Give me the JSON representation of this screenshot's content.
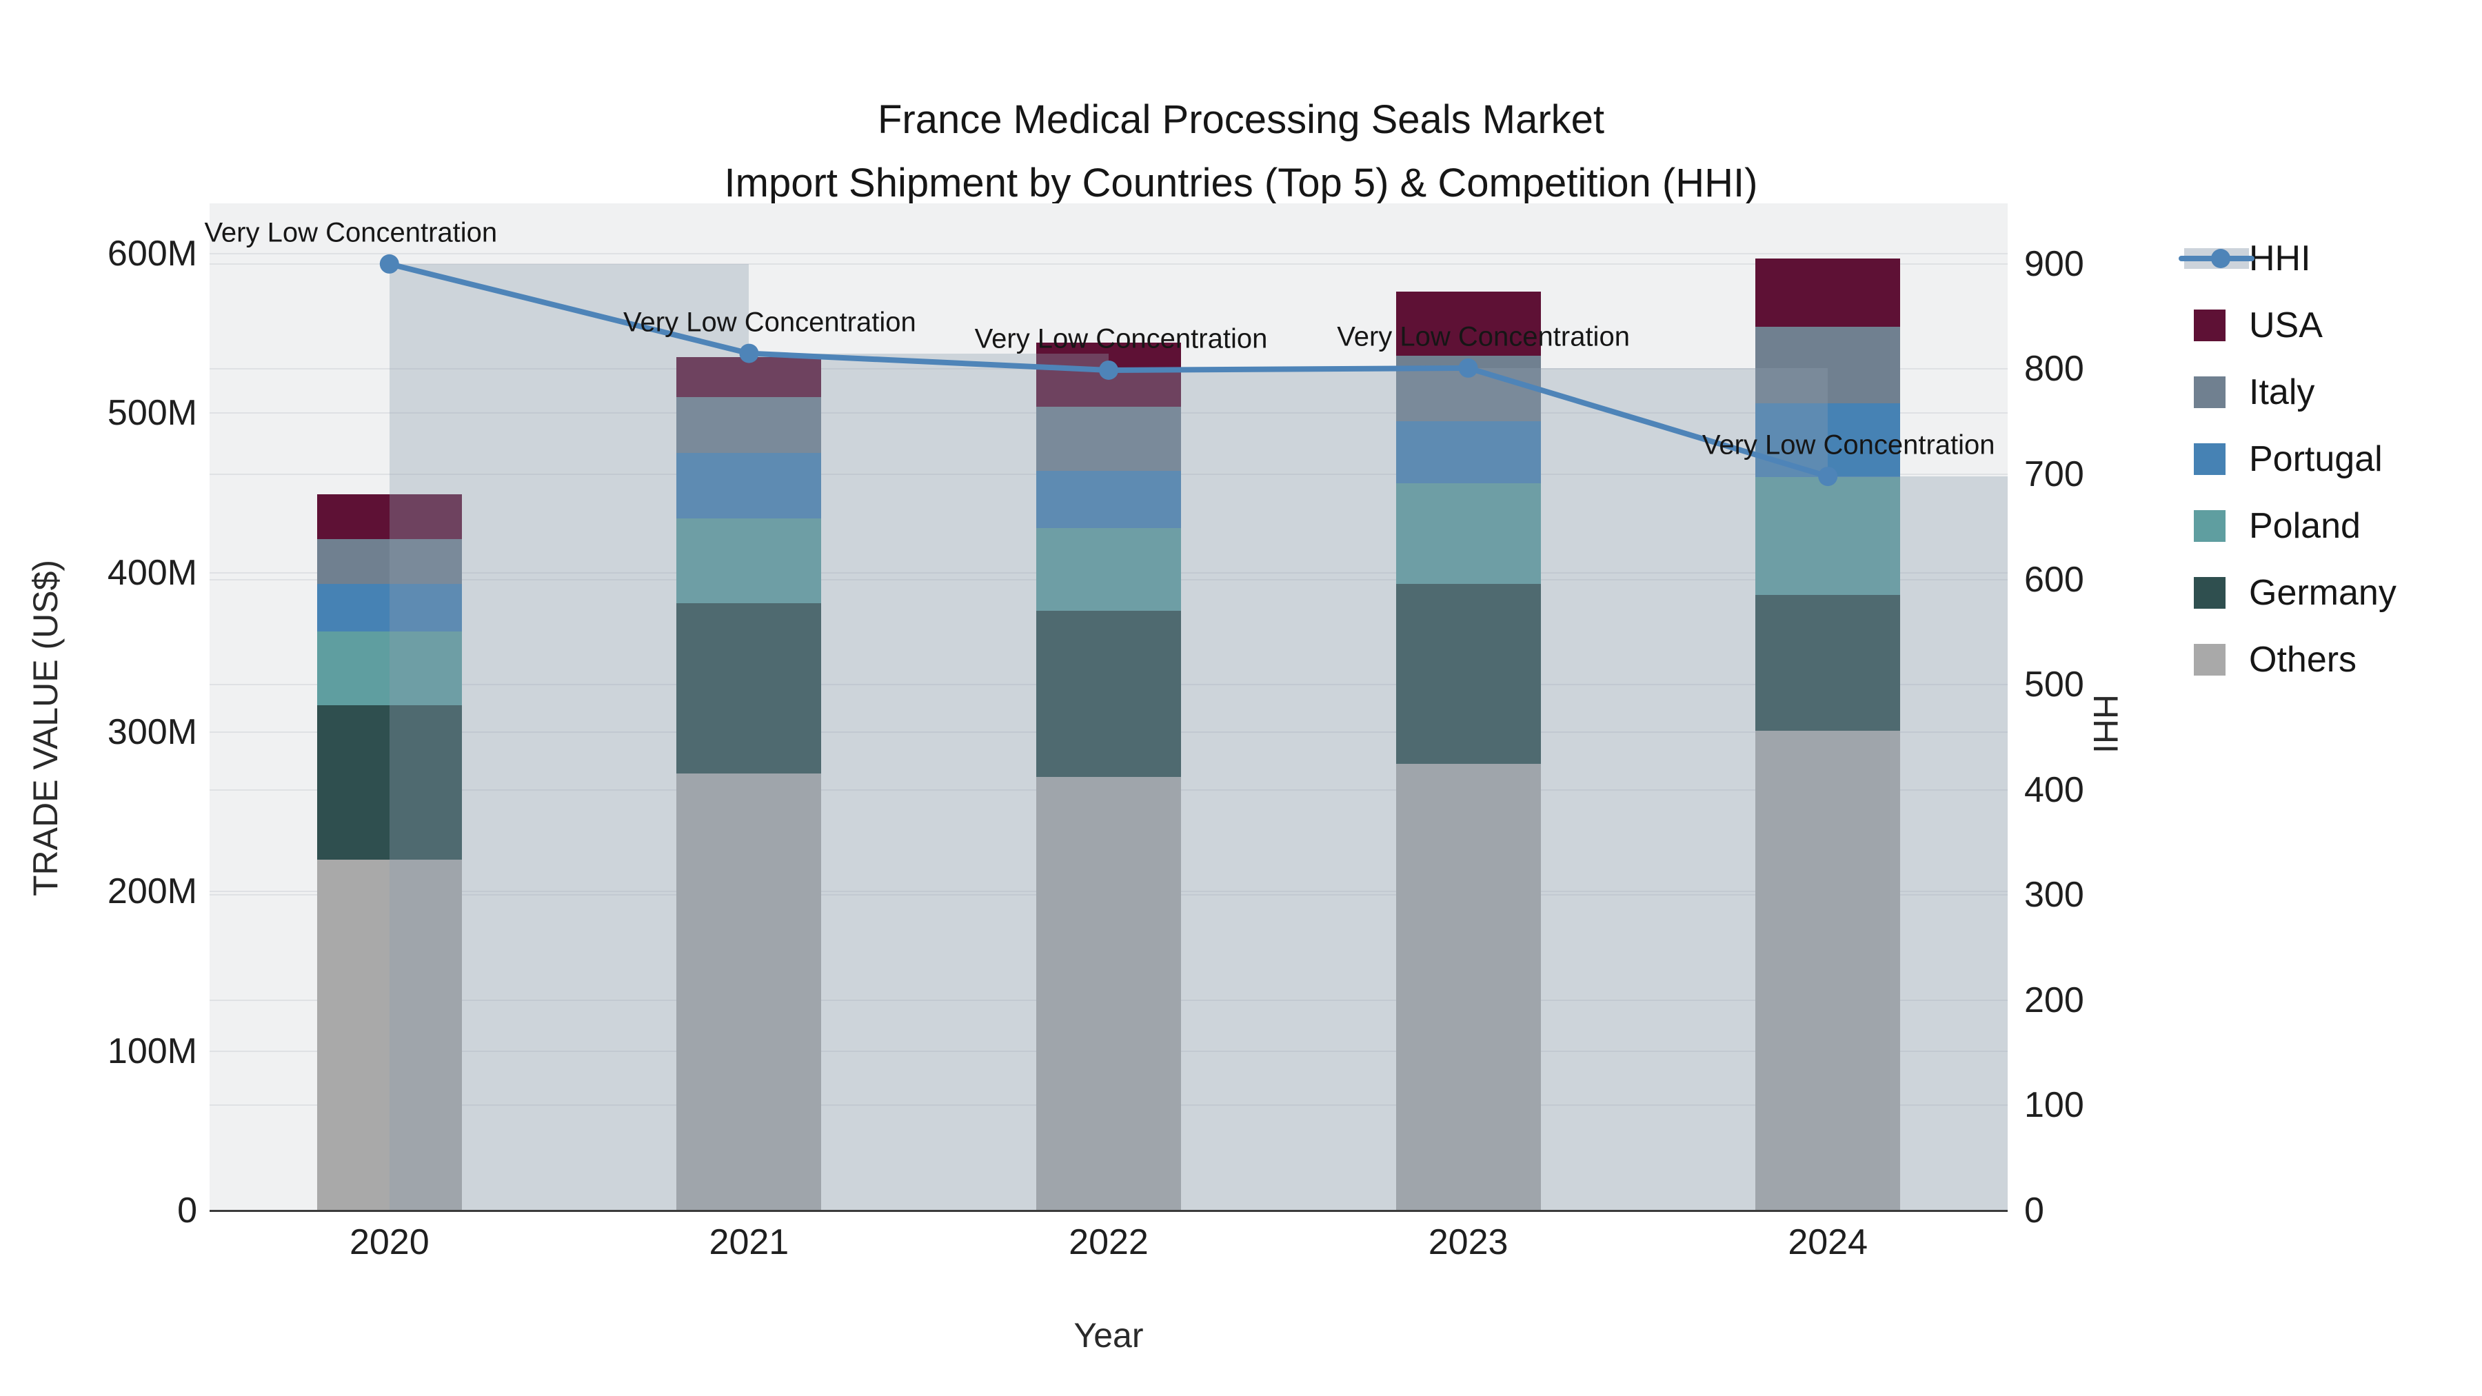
{
  "title": {
    "line1": "France Medical Processing Seals Market",
    "line2": "Import Shipment by Countries (Top 5) & Competition (HHI)"
  },
  "axes": {
    "x": {
      "title": "Year",
      "ticks": [
        "2020",
        "2021",
        "2022",
        "2023",
        "2024"
      ]
    },
    "left": {
      "title": "TRADE VALUE (US$)",
      "ticks": [
        "0",
        "100M",
        "200M",
        "300M",
        "400M",
        "500M",
        "600M"
      ],
      "tick_values": [
        0,
        100,
        200,
        300,
        400,
        500,
        600
      ]
    },
    "right": {
      "title": "HHI",
      "ticks": [
        "0",
        "100",
        "200",
        "300",
        "400",
        "500",
        "600",
        "700",
        "800",
        "900"
      ],
      "tick_values": [
        0,
        100,
        200,
        300,
        400,
        500,
        600,
        700,
        800,
        900
      ]
    }
  },
  "legend": {
    "hhi_label": "HHI",
    "entries": [
      "HHI",
      "USA",
      "Italy",
      "Portugal",
      "Poland",
      "Germany",
      "Others"
    ]
  },
  "colors": {
    "hhi_line": "#4e84b8",
    "hhi_bar_fill": "rgba(140,158,175,0.35)",
    "plot_background": "#f0f1f2",
    "gridline": "#dfe1e4",
    "axis_line": "#3b3b3b"
  },
  "chart_data": {
    "type": "bar",
    "subtype": "stacked-bars-with-line-overlay",
    "categories": [
      "2020",
      "2021",
      "2022",
      "2023",
      "2024"
    ],
    "series": [
      {
        "name": "USA",
        "axis": "left",
        "color": "#5e1135",
        "values": [
          28,
          25,
          40,
          40,
          43
        ]
      },
      {
        "name": "Italy",
        "axis": "left",
        "color": "#708090",
        "values": [
          28,
          35,
          40,
          41,
          48
        ]
      },
      {
        "name": "Portugal",
        "axis": "left",
        "color": "#4682b4",
        "values": [
          30,
          41,
          36,
          39,
          46
        ]
      },
      {
        "name": "Poland",
        "axis": "left",
        "color": "#5f9ea0",
        "values": [
          46,
          53,
          52,
          63,
          74
        ]
      },
      {
        "name": "Germany",
        "axis": "left",
        "color": "#2f4f4f",
        "values": [
          97,
          107,
          104,
          113,
          85
        ]
      },
      {
        "name": "Others",
        "axis": "left",
        "color": "#a9a9a9",
        "values": [
          220,
          274,
          272,
          280,
          301
        ]
      }
    ],
    "stack_totals": [
      449,
      535,
      544,
      576,
      597
    ],
    "hhi_series": {
      "name": "HHI",
      "axis": "right",
      "type": "line+area-bars",
      "values": [
        900,
        815,
        799,
        801,
        698
      ],
      "annotations": [
        "Very Low Concentration",
        "Very Low Concentration",
        "Very Low Concentration",
        "Very Low Concentration",
        "Very Low Concentration"
      ]
    },
    "title": "France Medical Processing Seals Market — Import Shipment by Countries (Top 5) & Competition (HHI)",
    "xlabel": "Year",
    "ylabel_left": "TRADE VALUE (US$)",
    "ylabel_right": "HHI",
    "ylim_left": [
      0,
      631.5
    ],
    "ylim_right": [
      0,
      957.6
    ],
    "grid": true,
    "legend_position": "right"
  }
}
